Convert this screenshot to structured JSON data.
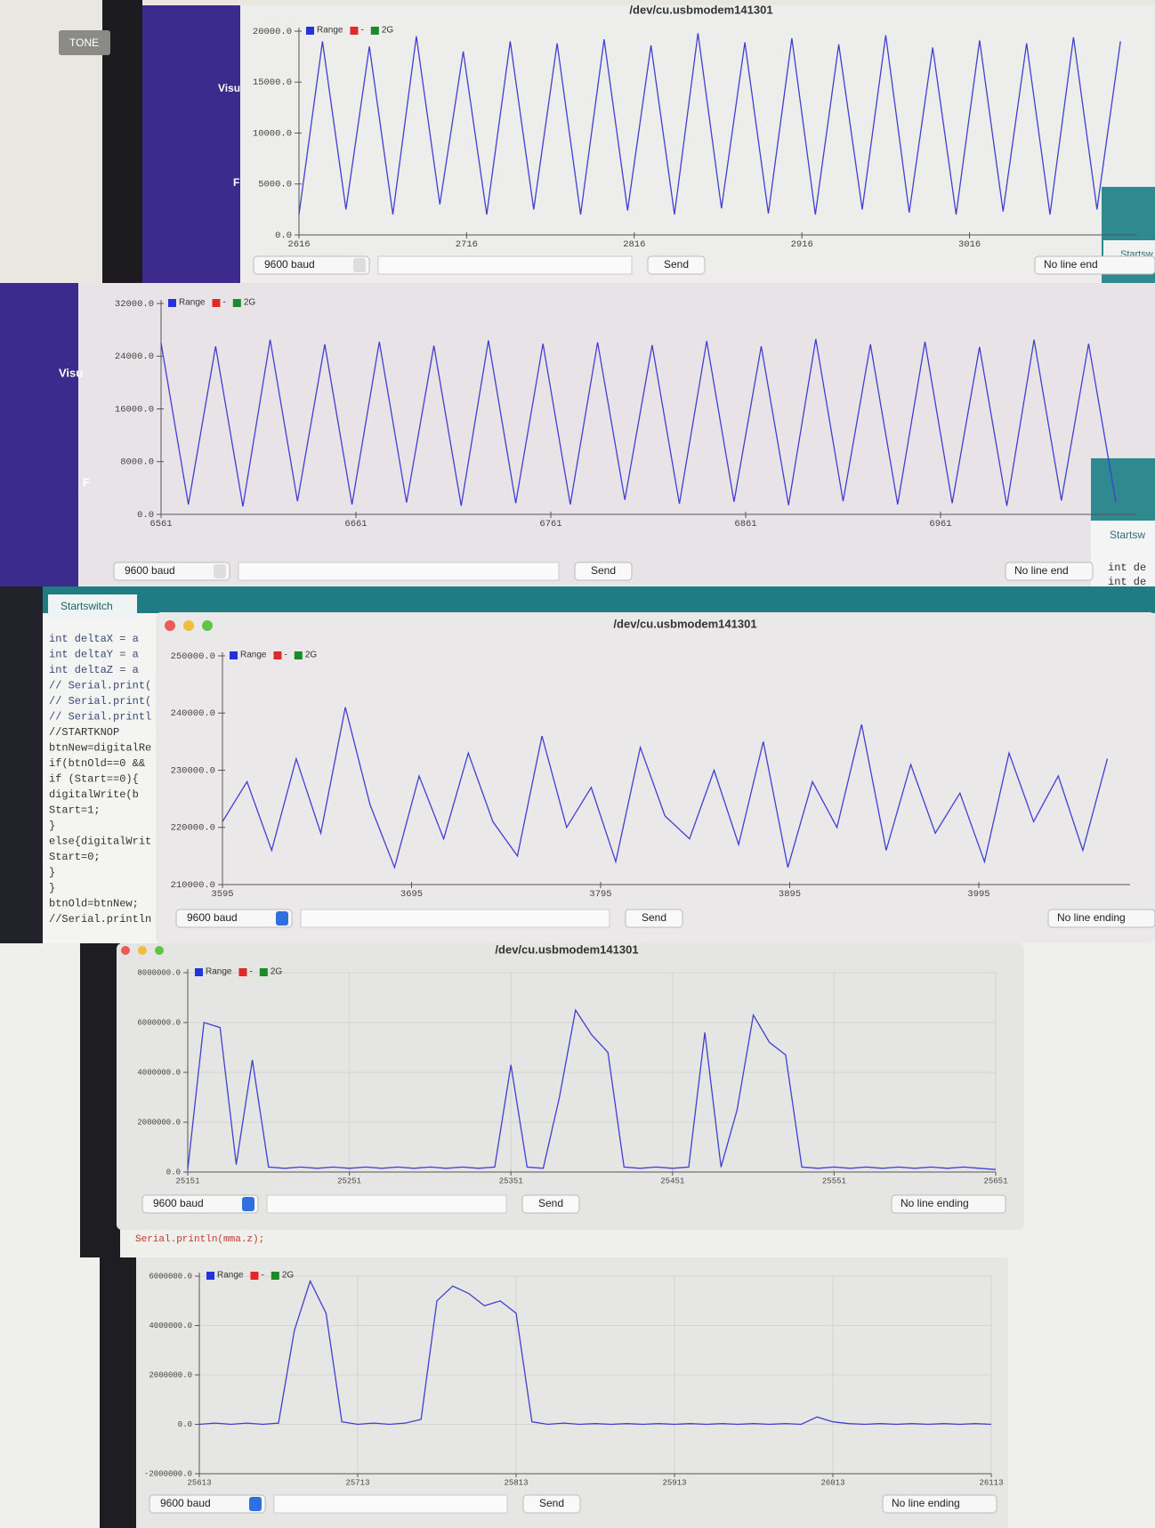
{
  "background": {
    "tone": "TONE",
    "visu_1": "Visu",
    "f_1": "F",
    "startsw_1": "Startsw",
    "visu_2": "Visu",
    "f_2": "F",
    "startsw_2": "Startsw",
    "int_lines": [
      "int de",
      "int de"
    ],
    "startswitch": "Startswitch",
    "code": [
      "int deltaX = a",
      "int deltaY = a",
      "int deltaZ = a",
      "// Serial.print(",
      "// Serial.print(",
      "// Serial.printl",
      "//STARTKNOP",
      "btnNew=digitalRe",
      "if(btnOld==0 &&",
      "if (Start==0){",
      "  digitalWrite(b",
      "Start=1;",
      "}",
      "else{digitalWrit",
      "Start=0;",
      "}",
      "}",
      "btnOld=btnNew;",
      "//Serial.println"
    ],
    "serial_line": "Serial.println(mma.z);"
  },
  "chart_data": [
    {
      "type": "line",
      "title": "/dev/cu.usbmodem141301",
      "legend": [
        {
          "name": "Range",
          "color": "#2233dd"
        },
        {
          "name": "-",
          "color": "#e02828"
        },
        {
          "name": "2G",
          "color": "#1a8a2a"
        }
      ],
      "color": "#4040d0",
      "x": [
        2616,
        2630,
        2644,
        2658,
        2672,
        2686,
        2700,
        2714,
        2728,
        2742,
        2756,
        2770,
        2784,
        2798,
        2812,
        2826,
        2840,
        2854,
        2868,
        2882,
        2896,
        2910,
        2924,
        2938,
        2952,
        2966,
        2980,
        2994,
        3008,
        3022,
        3036,
        3050,
        3064,
        3078,
        3092,
        3106
      ],
      "values": [
        2000,
        19000,
        2500,
        18500,
        2000,
        19500,
        3000,
        18000,
        2000,
        19000,
        2500,
        18800,
        2000,
        19200,
        2400,
        18600,
        2000,
        19800,
        2600,
        18900,
        2100,
        19300,
        2000,
        18700,
        2500,
        19600,
        2200,
        18400,
        2000,
        19100,
        2300,
        18800,
        2000,
        19400,
        2500,
        19000
      ],
      "xlim": [
        2616,
        3116
      ],
      "ylim": [
        0,
        20000
      ],
      "xticks": [
        2616,
        2716,
        2816,
        2916,
        3016
      ],
      "yticks": [
        {
          "value": 0,
          "label": "0.0"
        },
        {
          "value": 5000,
          "label": "5000.0"
        },
        {
          "value": 10000,
          "label": "10000.0"
        },
        {
          "value": 15000,
          "label": "15000.0"
        },
        {
          "value": 20000,
          "label": "20000.0"
        }
      ],
      "grid": false,
      "baud": "9600 baud",
      "send": "Send",
      "line_ending": "No line end"
    },
    {
      "type": "line",
      "legend": [
        {
          "name": "Range",
          "color": "#2233dd"
        },
        {
          "name": "-",
          "color": "#e02828"
        },
        {
          "name": "2G",
          "color": "#1a8a2a"
        }
      ],
      "color": "#4040d0",
      "x": [
        6561,
        6575,
        6589,
        6603,
        6617,
        6631,
        6645,
        6659,
        6673,
        6687,
        6701,
        6715,
        6729,
        6743,
        6757,
        6771,
        6785,
        6799,
        6813,
        6827,
        6841,
        6855,
        6869,
        6883,
        6897,
        6911,
        6925,
        6939,
        6953,
        6967,
        6981,
        6995,
        7009,
        7023,
        7037,
        7051
      ],
      "values": [
        26000,
        1500,
        25500,
        1200,
        26500,
        2000,
        25800,
        1500,
        26200,
        1800,
        25600,
        1300,
        26400,
        1700,
        25900,
        1500,
        26100,
        2200,
        25700,
        1600,
        26300,
        1900,
        25500,
        1400,
        26600,
        2000,
        25800,
        1500,
        26200,
        1700,
        25400,
        1300,
        26500,
        2100,
        25900,
        1800
      ],
      "xlim": [
        6561,
        7061
      ],
      "ylim": [
        0,
        32000
      ],
      "xticks": [
        6561,
        6661,
        6761,
        6861,
        6961
      ],
      "yticks": [
        {
          "value": 0,
          "label": "0.0"
        },
        {
          "value": 8000,
          "label": "8000.0"
        },
        {
          "value": 16000,
          "label": "16000.0"
        },
        {
          "value": 24000,
          "label": "24000.0"
        },
        {
          "value": 32000,
          "label": "32000.0"
        }
      ],
      "grid": false,
      "baud": "9600 baud",
      "send": "Send",
      "line_ending": "No line end"
    },
    {
      "type": "line",
      "title": "/dev/cu.usbmodem141301",
      "legend": [
        {
          "name": "Range",
          "color": "#2233dd"
        },
        {
          "name": "-",
          "color": "#e02828"
        },
        {
          "name": "2G",
          "color": "#1a8a2a"
        }
      ],
      "color": "#4040d0",
      "x": [
        3595,
        3608,
        3621,
        3634,
        3647,
        3660,
        3673,
        3686,
        3699,
        3712,
        3725,
        3738,
        3751,
        3764,
        3777,
        3790,
        3803,
        3816,
        3829,
        3842,
        3855,
        3868,
        3881,
        3894,
        3907,
        3920,
        3933,
        3946,
        3959,
        3972,
        3985,
        3998,
        4011,
        4024,
        4037,
        4050,
        4063
      ],
      "values": [
        221000,
        228000,
        216000,
        232000,
        219000,
        241000,
        224000,
        213000,
        229000,
        218000,
        233000,
        221000,
        215000,
        236000,
        220000,
        227000,
        214000,
        234000,
        222000,
        218000,
        230000,
        217000,
        235000,
        213000,
        228000,
        220000,
        238000,
        216000,
        231000,
        219000,
        226000,
        214000,
        233000,
        221000,
        229000,
        216000,
        232000
      ],
      "xlim": [
        3595,
        4075
      ],
      "ylim": [
        210000,
        250000
      ],
      "xticks": [
        3595,
        3695,
        3795,
        3895,
        3995
      ],
      "yticks": [
        {
          "value": 210000,
          "label": "210000.0"
        },
        {
          "value": 220000,
          "label": "220000.0"
        },
        {
          "value": 230000,
          "label": "230000.0"
        },
        {
          "value": 240000,
          "label": "240000.0"
        },
        {
          "value": 250000,
          "label": "250000.0"
        }
      ],
      "grid": false,
      "baud": "9600 baud",
      "send": "Send",
      "line_ending": "No line ending"
    },
    {
      "type": "line",
      "title": "/dev/cu.usbmodem141301",
      "legend": [
        {
          "name": "Range",
          "color": "#2233dd"
        },
        {
          "name": "-",
          "color": "#e02828"
        },
        {
          "name": "2G",
          "color": "#1a8a2a"
        }
      ],
      "color": "#4040d0",
      "x": [
        25151,
        25161,
        25171,
        25181,
        25191,
        25201,
        25211,
        25221,
        25231,
        25241,
        25251,
        25261,
        25271,
        25281,
        25291,
        25301,
        25311,
        25321,
        25331,
        25341,
        25351,
        25361,
        25371,
        25381,
        25391,
        25401,
        25411,
        25421,
        25431,
        25441,
        25451,
        25461,
        25471,
        25481,
        25491,
        25501,
        25511,
        25521,
        25531,
        25541,
        25551,
        25561,
        25571,
        25581,
        25591,
        25601,
        25611,
        25621,
        25631,
        25641,
        25651
      ],
      "values": [
        100000,
        6000000,
        5800000,
        300000,
        4500000,
        200000,
        150000,
        200000,
        150000,
        200000,
        150000,
        200000,
        150000,
        200000,
        150000,
        200000,
        150000,
        200000,
        150000,
        200000,
        4300000,
        200000,
        150000,
        3000000,
        6500000,
        5500000,
        4800000,
        200000,
        150000,
        200000,
        150000,
        200000,
        5600000,
        200000,
        2500000,
        6300000,
        5200000,
        4700000,
        200000,
        150000,
        200000,
        150000,
        200000,
        150000,
        200000,
        150000,
        200000,
        150000,
        200000,
        150000,
        100000
      ],
      "xlim": [
        25151,
        25651
      ],
      "ylim": [
        0,
        8000000
      ],
      "xticks": [
        25151,
        25251,
        25351,
        25451,
        25551,
        25651
      ],
      "yticks": [
        {
          "value": 0,
          "label": "0.0"
        },
        {
          "value": 2000000,
          "label": "2000000.0"
        },
        {
          "value": 4000000,
          "label": "4000000.0"
        },
        {
          "value": 6000000,
          "label": "6000000.0"
        },
        {
          "value": 8000000,
          "label": "8000000.0"
        }
      ],
      "grid": true,
      "baud": "9600 baud",
      "send": "Send",
      "line_ending": "No line ending"
    },
    {
      "type": "line",
      "legend": [
        {
          "name": "Range",
          "color": "#2233dd"
        },
        {
          "name": "-",
          "color": "#e02828"
        },
        {
          "name": "2G",
          "color": "#1a8a2a"
        }
      ],
      "color": "#4040d0",
      "x": [
        25613,
        25623,
        25633,
        25643,
        25653,
        25663,
        25673,
        25683,
        25693,
        25703,
        25713,
        25723,
        25733,
        25743,
        25753,
        25763,
        25773,
        25783,
        25793,
        25803,
        25813,
        25823,
        25833,
        25843,
        25853,
        25863,
        25873,
        25883,
        25893,
        25903,
        25913,
        25923,
        25933,
        25943,
        25953,
        25963,
        25973,
        25983,
        25993,
        26003,
        26013,
        26023,
        26033,
        26043,
        26053,
        26063,
        26073,
        26083,
        26093,
        26103,
        26113
      ],
      "values": [
        0,
        50000,
        0,
        50000,
        0,
        50000,
        3800000,
        5800000,
        4500000,
        100000,
        0,
        50000,
        0,
        50000,
        200000,
        5000000,
        5600000,
        5300000,
        4800000,
        5000000,
        4500000,
        100000,
        0,
        50000,
        0,
        30000,
        0,
        30000,
        0,
        30000,
        0,
        30000,
        0,
        30000,
        0,
        30000,
        0,
        30000,
        0,
        300000,
        100000,
        30000,
        0,
        30000,
        0,
        30000,
        0,
        30000,
        0,
        30000,
        0
      ],
      "xlim": [
        25613,
        26113
      ],
      "ylim": [
        -2000000,
        6000000
      ],
      "xticks": [
        25613,
        25713,
        25813,
        25913,
        26013,
        26113
      ],
      "yticks": [
        {
          "value": -2000000,
          "label": "-2000000.0"
        },
        {
          "value": 0,
          "label": "0.0"
        },
        {
          "value": 2000000,
          "label": "2000000.0"
        },
        {
          "value": 4000000,
          "label": "4000000.0"
        },
        {
          "value": 6000000,
          "label": "6000000.0"
        }
      ],
      "grid": true,
      "baud": "9600 baud",
      "send": "Send",
      "line_ending": "No line ending"
    }
  ]
}
